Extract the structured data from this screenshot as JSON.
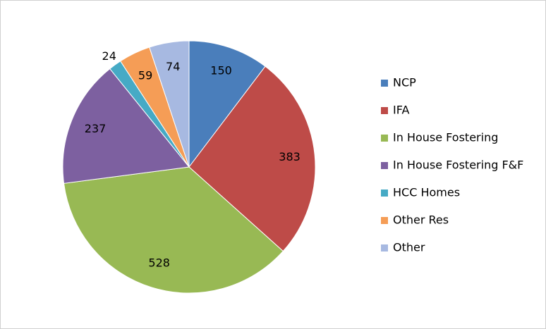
{
  "chart_data": {
    "type": "pie",
    "categories": [
      "NCP",
      "IFA",
      "In House Fostering",
      "In House Fostering F&F",
      "HCC Homes",
      "Other Res",
      "Other"
    ],
    "values": [
      150,
      383,
      528,
      237,
      24,
      59,
      74
    ],
    "colors": [
      "#4a7ebb",
      "#be4b48",
      "#98b954",
      "#7d60a0",
      "#46aac5",
      "#f59d56",
      "#a7b9e1"
    ],
    "legend": "right"
  }
}
